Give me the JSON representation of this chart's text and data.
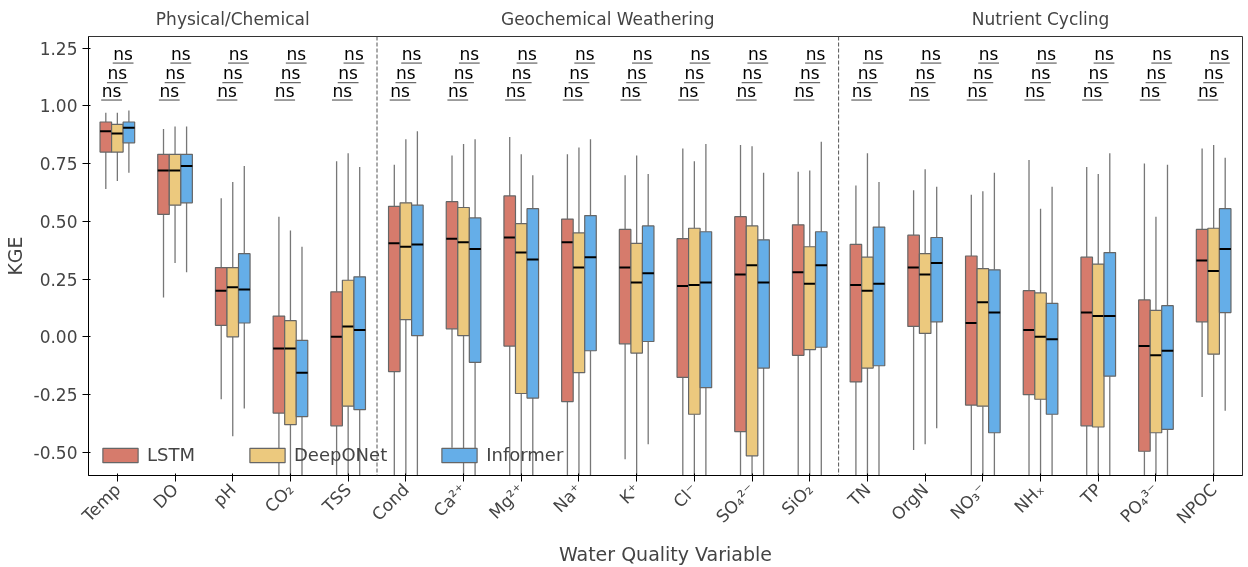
{
  "chart_data": {
    "type": "box",
    "xlabel": "Water Quality Variable",
    "ylabel": "KGE",
    "categories": [
      "Temp",
      "DO",
      "pH",
      "CO₂",
      "TSS",
      "Cond",
      "Ca²⁺",
      "Mg²⁺",
      "Na⁺",
      "K⁺",
      "Cl⁻",
      "SO₄²⁻",
      "SiO₂",
      "TN",
      "OrgN",
      "NO₃⁻",
      "NHₓ",
      "TP",
      "PO₄³⁻",
      "NPOC"
    ],
    "ylim": [
      -0.6,
      1.3
    ],
    "yticks": [
      {
        "value": -0.5,
        "label": "-0.50"
      },
      {
        "value": -0.25,
        "label": "-0.25"
      },
      {
        "value": 0,
        "label": "0.00"
      },
      {
        "value": 0.25,
        "label": "0.25"
      },
      {
        "value": 0.5,
        "label": "0.50"
      },
      {
        "value": 0.75,
        "label": "0.75"
      },
      {
        "value": 1.0,
        "label": "1.00"
      },
      {
        "value": 1.25,
        "label": "1.25"
      }
    ],
    "grid": false,
    "legend": "bottom left",
    "series": [
      {
        "name": "LSTM",
        "color": "#d67b6c",
        "boxes": [
          {
            "low": 0.64,
            "q1": 0.8,
            "median": 0.89,
            "q3": 0.93,
            "high": 0.97
          },
          {
            "low": 0.17,
            "q1": 0.53,
            "median": 0.72,
            "q3": 0.79,
            "high": 0.9
          },
          {
            "low": -0.27,
            "q1": 0.05,
            "median": 0.2,
            "q3": 0.3,
            "high": 0.6
          },
          {
            "low": -0.6,
            "q1": -0.33,
            "median": -0.05,
            "q3": 0.09,
            "high": 0.52
          },
          {
            "low": -0.6,
            "q1": -0.385,
            "median": 0.0,
            "q3": 0.195,
            "high": 0.76
          },
          {
            "low": -0.6,
            "q1": -0.15,
            "median": 0.405,
            "q3": 0.565,
            "high": 0.745
          },
          {
            "low": -0.48,
            "q1": 0.035,
            "median": 0.425,
            "q3": 0.585,
            "high": 0.785
          },
          {
            "low": -0.6,
            "q1": -0.04,
            "median": 0.43,
            "q3": 0.61,
            "high": 0.865
          },
          {
            "low": -0.6,
            "q1": -0.28,
            "median": 0.41,
            "q3": 0.51,
            "high": 0.79
          },
          {
            "low": -0.53,
            "q1": -0.03,
            "median": 0.3,
            "q3": 0.465,
            "high": 0.7
          },
          {
            "low": -0.6,
            "q1": -0.175,
            "median": 0.22,
            "q3": 0.425,
            "high": 0.815
          },
          {
            "low": -0.6,
            "q1": -0.41,
            "median": 0.27,
            "q3": 0.52,
            "high": 0.83
          },
          {
            "low": -0.6,
            "q1": -0.08,
            "median": 0.28,
            "q3": 0.485,
            "high": 0.715
          },
          {
            "low": -0.6,
            "q1": -0.195,
            "median": 0.225,
            "q3": 0.4,
            "high": 0.655
          },
          {
            "low": -0.49,
            "q1": 0.045,
            "median": 0.3,
            "q3": 0.44,
            "high": 0.635
          },
          {
            "low": -0.6,
            "q1": -0.295,
            "median": 0.06,
            "q3": 0.35,
            "high": 0.615
          },
          {
            "low": -0.6,
            "q1": -0.25,
            "median": 0.03,
            "q3": 0.2,
            "high": 0.765
          },
          {
            "low": -0.6,
            "q1": -0.385,
            "median": 0.105,
            "q3": 0.345,
            "high": 0.735
          },
          {
            "low": -0.6,
            "q1": -0.495,
            "median": -0.04,
            "q3": 0.16,
            "high": 0.75
          },
          {
            "low": -0.26,
            "q1": 0.065,
            "median": 0.33,
            "q3": 0.465,
            "high": 0.815
          }
        ]
      },
      {
        "name": "DeepONet",
        "color": "#ecc97e",
        "boxes": [
          {
            "low": 0.675,
            "q1": 0.8,
            "median": 0.88,
            "q3": 0.92,
            "high": 0.97
          },
          {
            "low": 0.32,
            "q1": 0.57,
            "median": 0.72,
            "q3": 0.79,
            "high": 0.91
          },
          {
            "low": -0.43,
            "q1": 0.0,
            "median": 0.215,
            "q3": 0.3,
            "high": 0.67
          },
          {
            "low": -0.6,
            "q1": -0.38,
            "median": -0.05,
            "q3": 0.07,
            "high": 0.46
          },
          {
            "low": -0.6,
            "q1": -0.3,
            "median": 0.045,
            "q3": 0.245,
            "high": 0.795
          },
          {
            "low": -0.6,
            "q1": 0.075,
            "median": 0.39,
            "q3": 0.58,
            "high": 0.855
          },
          {
            "low": -0.6,
            "q1": 0.005,
            "median": 0.41,
            "q3": 0.56,
            "high": 0.835
          },
          {
            "low": -0.6,
            "q1": -0.245,
            "median": 0.365,
            "q3": 0.49,
            "high": 0.79
          },
          {
            "low": -0.6,
            "q1": -0.155,
            "median": 0.3,
            "q3": 0.45,
            "high": 0.82
          },
          {
            "low": -0.6,
            "q1": -0.07,
            "median": 0.235,
            "q3": 0.405,
            "high": 0.785
          },
          {
            "low": -0.6,
            "q1": -0.335,
            "median": 0.225,
            "q3": 0.47,
            "high": 0.76
          },
          {
            "low": -0.6,
            "q1": -0.515,
            "median": 0.31,
            "q3": 0.48,
            "high": 0.825
          },
          {
            "low": -0.6,
            "q1": -0.055,
            "median": 0.23,
            "q3": 0.39,
            "high": 0.72
          },
          {
            "low": -0.6,
            "q1": -0.135,
            "median": 0.2,
            "q3": 0.345,
            "high": 0.795
          },
          {
            "low": -0.465,
            "q1": 0.015,
            "median": 0.27,
            "q3": 0.36,
            "high": 0.725
          },
          {
            "low": -0.6,
            "q1": -0.3,
            "median": 0.15,
            "q3": 0.295,
            "high": 0.63
          },
          {
            "low": -0.6,
            "q1": -0.27,
            "median": 0.0,
            "q3": 0.19,
            "high": 0.555
          },
          {
            "low": -0.6,
            "q1": -0.39,
            "median": 0.09,
            "q3": 0.315,
            "high": 0.705
          },
          {
            "low": -0.6,
            "q1": -0.415,
            "median": -0.08,
            "q3": 0.115,
            "high": 0.52
          },
          {
            "low": -0.6,
            "q1": -0.075,
            "median": 0.285,
            "q3": 0.47,
            "high": 0.83
          }
        ]
      },
      {
        "name": "Informer",
        "color": "#65aee8",
        "boxes": [
          {
            "low": 0.71,
            "q1": 0.84,
            "median": 0.905,
            "q3": 0.93,
            "high": 0.98
          },
          {
            "low": 0.28,
            "q1": 0.58,
            "median": 0.74,
            "q3": 0.79,
            "high": 0.91
          },
          {
            "low": -0.31,
            "q1": 0.06,
            "median": 0.205,
            "q3": 0.36,
            "high": 0.74
          },
          {
            "low": -0.6,
            "q1": -0.345,
            "median": -0.155,
            "q3": -0.015,
            "high": 0.39
          },
          {
            "low": -0.6,
            "q1": -0.315,
            "median": 0.03,
            "q3": 0.26,
            "high": 0.735
          },
          {
            "low": -0.6,
            "q1": 0.005,
            "median": 0.4,
            "q3": 0.57,
            "high": 0.89
          },
          {
            "low": -0.6,
            "q1": -0.11,
            "median": 0.38,
            "q3": 0.515,
            "high": 0.855
          },
          {
            "low": -0.6,
            "q1": -0.265,
            "median": 0.335,
            "q3": 0.555,
            "high": 0.7
          },
          {
            "low": -0.6,
            "q1": -0.06,
            "median": 0.345,
            "q3": 0.525,
            "high": 0.855
          },
          {
            "low": -0.465,
            "q1": -0.02,
            "median": 0.275,
            "q3": 0.48,
            "high": 0.705
          },
          {
            "low": -0.6,
            "q1": -0.22,
            "median": 0.235,
            "q3": 0.455,
            "high": 0.835
          },
          {
            "low": -0.6,
            "q1": -0.135,
            "median": 0.235,
            "q3": 0.42,
            "high": 0.71
          },
          {
            "low": -0.6,
            "q1": -0.045,
            "median": 0.31,
            "q3": 0.455,
            "high": 0.845
          },
          {
            "low": -0.6,
            "q1": -0.125,
            "median": 0.23,
            "q3": 0.475,
            "high": 0.67
          },
          {
            "low": -0.395,
            "q1": 0.065,
            "median": 0.32,
            "q3": 0.43,
            "high": 0.65
          },
          {
            "low": -0.6,
            "q1": -0.415,
            "median": 0.105,
            "q3": 0.29,
            "high": 0.71
          },
          {
            "low": -0.6,
            "q1": -0.335,
            "median": -0.01,
            "q3": 0.145,
            "high": 0.65
          },
          {
            "low": -0.6,
            "q1": -0.17,
            "median": 0.09,
            "q3": 0.365,
            "high": 0.795
          },
          {
            "low": -0.6,
            "q1": -0.4,
            "median": -0.06,
            "q3": 0.135,
            "high": 0.745
          },
          {
            "low": -0.32,
            "q1": 0.105,
            "median": 0.38,
            "q3": 0.555,
            "high": 0.775
          }
        ]
      }
    ],
    "annotations": [
      "Physical/Chemical",
      "Geochemical Weathering",
      "Nutrient Cycling",
      "ns",
      "ns",
      "ns",
      "ns",
      "ns",
      "ns",
      "ns",
      "ns",
      "ns",
      "ns",
      "ns",
      "ns",
      "ns",
      "ns",
      "ns",
      "ns",
      "ns",
      "ns",
      "ns",
      "ns",
      "ns",
      "ns",
      "ns",
      "ns",
      "ns",
      "ns",
      "ns",
      "ns",
      "ns",
      "ns",
      "ns",
      "ns",
      "ns",
      "ns",
      "ns",
      "ns",
      "ns",
      "ns",
      "ns",
      "ns",
      "ns",
      "ns",
      "ns",
      "ns",
      "ns",
      "ns",
      "ns",
      "ns",
      "ns",
      "ns",
      "ns",
      "ns",
      "ns",
      "ns",
      "ns",
      "ns",
      "ns",
      "ns",
      "ns",
      "ns"
    ]
  }
}
